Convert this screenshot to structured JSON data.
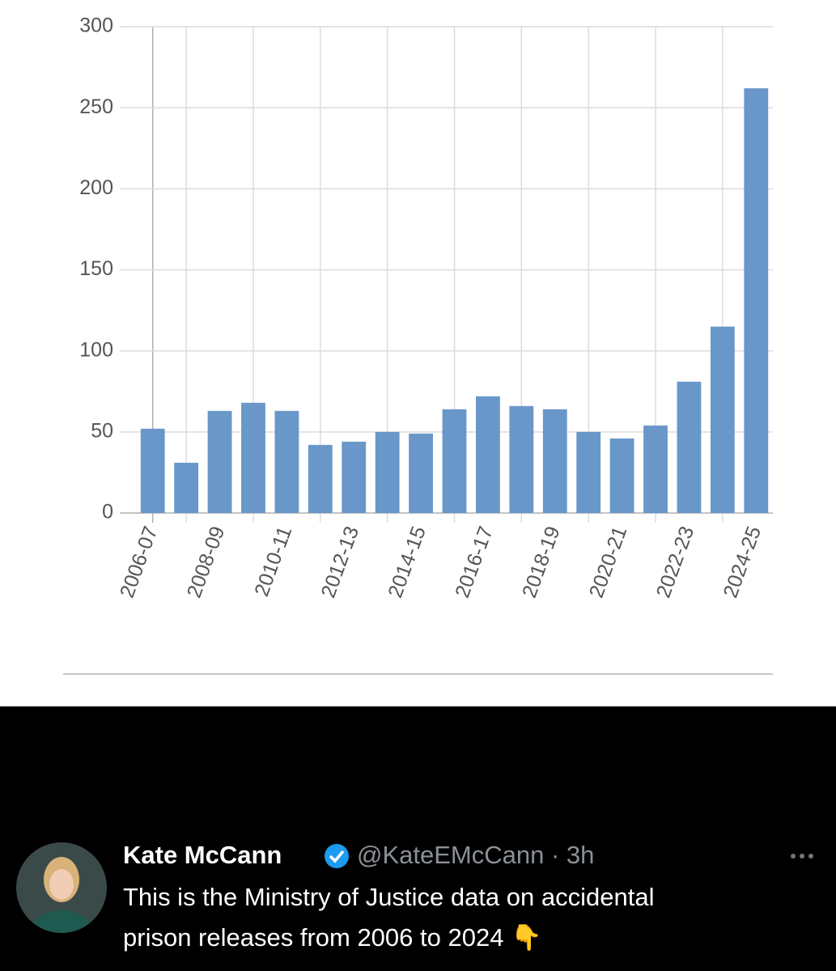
{
  "chart_data": {
    "type": "bar",
    "categories": [
      "2006-07",
      null,
      "2008-09",
      null,
      "2010-11",
      null,
      "2012-13",
      null,
      "2014-15",
      null,
      "2016-17",
      null,
      "2018-19",
      null,
      "2020-21",
      null,
      "2022-23",
      null,
      "2024-25"
    ],
    "values": [
      52,
      31,
      63,
      68,
      63,
      42,
      44,
      50,
      49,
      64,
      72,
      66,
      64,
      50,
      46,
      54,
      81,
      115,
      262
    ],
    "color": "#6a97c9",
    "ylim": [
      0,
      300
    ],
    "yticks": [
      0,
      50,
      100,
      150,
      200,
      250,
      300
    ],
    "grid": true
  },
  "tweet": {
    "name": "Kate McCann",
    "meta": "@KateEMcCann · 3h",
    "text_lines": [
      "This is the Ministry of Justice data on accidental",
      "prison releases from 2006 to 2024 👇"
    ]
  }
}
